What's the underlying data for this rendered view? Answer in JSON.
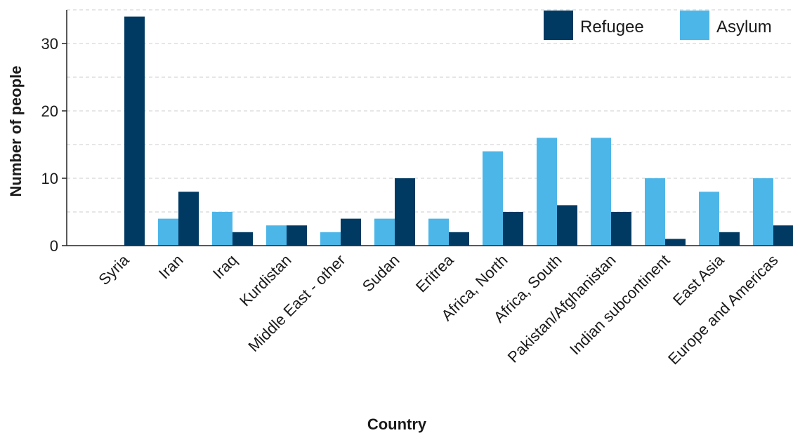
{
  "chart_data": {
    "type": "bar",
    "title": "",
    "xlabel": "Country",
    "ylabel": "Number of people",
    "categories": [
      "Syria",
      "Iran",
      "Iraq",
      "Kurdistan",
      "Middle East - other",
      "Sudan",
      "Eritrea",
      "Africa, North",
      "Africa, South",
      "Pakistan/Afghanistan",
      "Indian subcontinent",
      "East Asia",
      "Europe and Americas"
    ],
    "series": [
      {
        "name": "Asylum",
        "color": "#4db6e8",
        "values": [
          0,
          4,
          5,
          3,
          2,
          4,
          4,
          14,
          16,
          16,
          10,
          8,
          10
        ]
      },
      {
        "name": "Refugee",
        "color": "#003a63",
        "values": [
          34,
          8,
          2,
          3,
          4,
          10,
          2,
          5,
          6,
          5,
          1,
          2,
          3
        ]
      }
    ],
    "ylim": [
      0,
      35
    ],
    "yticks": [
      0,
      10,
      20,
      30
    ],
    "grid": {
      "horizontal": true,
      "style": "dashed",
      "minor_every": 5
    },
    "legend": {
      "placement": "top-right",
      "order": [
        "Refugee",
        "Asylum"
      ]
    }
  }
}
